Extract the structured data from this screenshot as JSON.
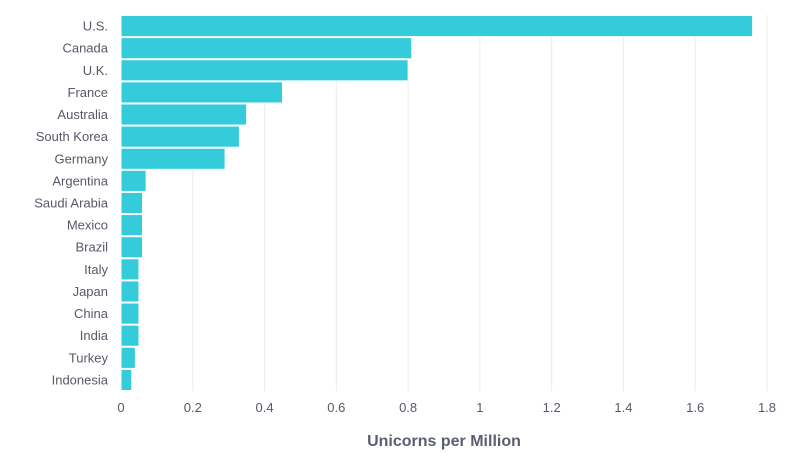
{
  "chart_data": {
    "type": "bar",
    "orientation": "horizontal",
    "categories": [
      "U.S.",
      "Canada",
      "U.K.",
      "France",
      "Australia",
      "South Korea",
      "Germany",
      "Argentina",
      "Saudi Arabia",
      "Mexico",
      "Brazil",
      "Italy",
      "Japan",
      "China",
      "India",
      "Turkey",
      "Indonesia"
    ],
    "values": [
      1.76,
      0.81,
      0.8,
      0.45,
      0.35,
      0.33,
      0.29,
      0.07,
      0.06,
      0.06,
      0.06,
      0.05,
      0.05,
      0.05,
      0.05,
      0.04,
      0.03
    ],
    "xlabel": "Unicorns per Million",
    "ylabel": "",
    "xlim": [
      0,
      1.8
    ],
    "xticks": [
      "0",
      "0.2",
      "0.4",
      "0.6",
      "0.8",
      "1",
      "1.2",
      "1.4",
      "1.6",
      "1.8"
    ],
    "grid": "vertical",
    "bar_color": "#34CBDB"
  }
}
